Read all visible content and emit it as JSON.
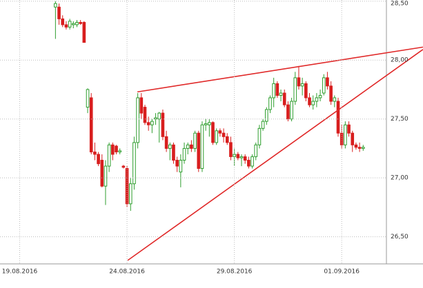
{
  "chart_data": {
    "type": "candlestick",
    "categories": [
      null,
      null,
      null,
      null,
      null,
      "19.08.2016",
      null,
      null,
      null,
      null,
      null,
      null,
      null,
      null,
      null,
      null,
      null,
      null,
      null,
      null,
      null,
      null,
      null,
      null,
      null,
      null,
      null,
      null,
      null,
      null,
      null,
      null,
      null,
      null,
      null,
      "24.08.2016",
      null,
      null,
      null,
      null,
      null,
      null,
      null,
      null,
      null,
      null,
      null,
      null,
      null,
      null,
      null,
      null,
      null,
      null,
      null,
      null,
      null,
      null,
      null,
      null,
      null,
      null,
      null,
      null,
      null,
      "29.08.2016",
      null,
      null,
      null,
      null,
      null,
      null,
      null,
      null,
      null,
      null,
      null,
      null,
      null,
      null,
      null,
      null,
      null,
      null,
      null,
      null,
      null,
      null,
      null,
      null,
      null,
      null,
      null,
      null,
      null,
      "01.09.2016",
      null,
      null,
      null,
      null,
      null,
      null,
      null,
      null,
      null,
      null,
      null,
      null
    ],
    "ohlc": [
      null,
      null,
      null,
      null,
      null,
      null,
      null,
      null,
      null,
      null,
      null,
      null,
      null,
      null,
      null,
      [
        28.45,
        28.5,
        28.18,
        28.48
      ],
      [
        28.45,
        28.48,
        28.3,
        28.35
      ],
      [
        28.35,
        28.38,
        28.28,
        28.3
      ],
      [
        28.3,
        28.33,
        28.26,
        28.28
      ],
      [
        28.28,
        28.35,
        28.26,
        28.33
      ],
      [
        28.3,
        28.33,
        28.27,
        28.31
      ],
      [
        28.3,
        28.34,
        28.28,
        28.32
      ],
      [
        28.32,
        28.34,
        28.3,
        28.31
      ],
      [
        28.32,
        28.33,
        28.15,
        28.15
      ],
      [
        27.6,
        27.76,
        27.55,
        27.75
      ],
      [
        27.68,
        27.72,
        27.2,
        27.22
      ],
      [
        27.22,
        27.3,
        27.15,
        27.2
      ],
      [
        27.2,
        27.22,
        27.1,
        27.12
      ],
      [
        27.15,
        27.2,
        26.92,
        26.93
      ],
      [
        26.93,
        27.15,
        26.77,
        27.1
      ],
      [
        27.1,
        27.3,
        27.05,
        27.28
      ],
      [
        27.28,
        27.3,
        27.15,
        27.2
      ],
      [
        27.27,
        27.28,
        27.2,
        27.22
      ],
      [
        27.22,
        27.25,
        27.2,
        27.23
      ],
      [
        27.1,
        27.11,
        27.08,
        27.09
      ],
      [
        27.08,
        27.1,
        26.75,
        26.78
      ],
      [
        26.78,
        27.0,
        26.72,
        26.95
      ],
      [
        26.95,
        27.35,
        26.9,
        27.3
      ],
      [
        27.3,
        27.72,
        27.25,
        27.68
      ],
      [
        27.68,
        27.72,
        27.5,
        27.55
      ],
      [
        27.6,
        27.62,
        27.45,
        27.47
      ],
      [
        27.47,
        27.52,
        27.4,
        27.45
      ],
      [
        27.45,
        27.5,
        27.38,
        27.48
      ],
      [
        27.5,
        27.55,
        27.45,
        27.51
      ],
      [
        27.5,
        27.56,
        27.3,
        27.55
      ],
      [
        27.55,
        27.58,
        27.32,
        27.35
      ],
      [
        27.35,
        27.4,
        27.22,
        27.25
      ],
      [
        27.25,
        27.3,
        27.15,
        27.28
      ],
      [
        27.28,
        27.3,
        27.12,
        27.15
      ],
      [
        27.15,
        27.18,
        27.05,
        27.1
      ],
      [
        27.05,
        27.2,
        26.92,
        27.15
      ],
      [
        27.15,
        27.3,
        27.12,
        27.25
      ],
      [
        27.25,
        27.3,
        27.2,
        27.28
      ],
      [
        27.28,
        27.32,
        27.22,
        27.25
      ],
      [
        27.25,
        27.4,
        27.22,
        27.38
      ],
      [
        27.38,
        27.4,
        27.05,
        27.08
      ],
      [
        27.08,
        27.48,
        27.05,
        27.45
      ],
      [
        27.45,
        27.5,
        27.4,
        27.46
      ],
      [
        27.45,
        27.5,
        27.35,
        27.47
      ],
      [
        27.47,
        27.48,
        27.28,
        27.3
      ],
      [
        27.3,
        27.42,
        27.28,
        27.4
      ],
      [
        27.4,
        27.42,
        27.35,
        27.38
      ],
      [
        27.38,
        27.42,
        27.3,
        27.35
      ],
      [
        27.35,
        27.38,
        27.28,
        27.3
      ],
      [
        27.3,
        27.35,
        27.15,
        27.18
      ],
      [
        27.18,
        27.25,
        27.1,
        27.2
      ],
      [
        27.2,
        27.22,
        27.15,
        27.17
      ],
      [
        27.17,
        27.2,
        27.1,
        27.18
      ],
      [
        27.18,
        27.2,
        27.12,
        27.15
      ],
      [
        27.15,
        27.18,
        27.08,
        27.1
      ],
      [
        27.1,
        27.2,
        27.08,
        27.18
      ],
      [
        27.18,
        27.3,
        27.15,
        27.28
      ],
      [
        27.28,
        27.45,
        27.25,
        27.42
      ],
      [
        27.42,
        27.5,
        27.4,
        27.48
      ],
      [
        27.48,
        27.6,
        27.45,
        27.58
      ],
      [
        27.58,
        27.7,
        27.55,
        27.68
      ],
      [
        27.68,
        27.85,
        27.6,
        27.8
      ],
      [
        27.8,
        27.82,
        27.68,
        27.7
      ],
      [
        27.7,
        27.75,
        27.65,
        27.72
      ],
      [
        27.72,
        27.75,
        27.6,
        27.62
      ],
      [
        27.62,
        27.65,
        27.48,
        27.5
      ],
      [
        27.5,
        27.68,
        27.48,
        27.65
      ],
      [
        27.65,
        27.9,
        27.62,
        27.85
      ],
      [
        27.85,
        27.95,
        27.75,
        27.78
      ],
      [
        27.78,
        27.85,
        27.7,
        27.8
      ],
      [
        27.8,
        27.82,
        27.65,
        27.68
      ],
      [
        27.68,
        27.72,
        27.6,
        27.62
      ],
      [
        27.62,
        27.7,
        27.58,
        27.65
      ],
      [
        27.65,
        27.72,
        27.6,
        27.68
      ],
      [
        27.68,
        27.75,
        27.65,
        27.7
      ],
      [
        27.72,
        27.88,
        27.7,
        27.85
      ],
      [
        27.85,
        27.9,
        27.75,
        27.78
      ],
      [
        27.78,
        27.82,
        27.62,
        27.65
      ],
      [
        27.65,
        27.7,
        27.6,
        27.68
      ],
      [
        27.65,
        27.68,
        27.35,
        27.38
      ],
      [
        27.38,
        27.45,
        27.25,
        27.28
      ],
      [
        27.28,
        27.48,
        27.25,
        27.45
      ],
      [
        27.45,
        27.48,
        27.35,
        27.38
      ],
      [
        27.38,
        27.4,
        27.22,
        27.28
      ],
      [
        27.28,
        27.3,
        27.24,
        27.26
      ],
      [
        27.26,
        27.3,
        27.22,
        27.25
      ],
      [
        27.25,
        27.28,
        27.23,
        27.26
      ],
      null,
      null,
      null,
      null,
      null,
      null
    ],
    "up_color": "#2e9e2e",
    "down_color": "#d81e1e",
    "ylim": [
      26.27,
      28.51
    ],
    "yticks": [
      {
        "value": 26.5,
        "label": "26,50"
      },
      {
        "value": 27,
        "label": "27,00"
      },
      {
        "value": 27.5,
        "label": "27,50"
      },
      {
        "value": 28,
        "label": "28,00"
      },
      {
        "value": 28.5,
        "label": "28,50"
      }
    ],
    "grid": true,
    "trendlines": [
      {
        "x": [
          37.9,
          117.7
        ],
        "values": [
          27.73,
          28.11
        ],
        "color": "#e02828"
      },
      {
        "x": [
          35.2,
          117.7
        ],
        "values": [
          26.3,
          28.09
        ],
        "color": "#e02828"
      }
    ]
  }
}
